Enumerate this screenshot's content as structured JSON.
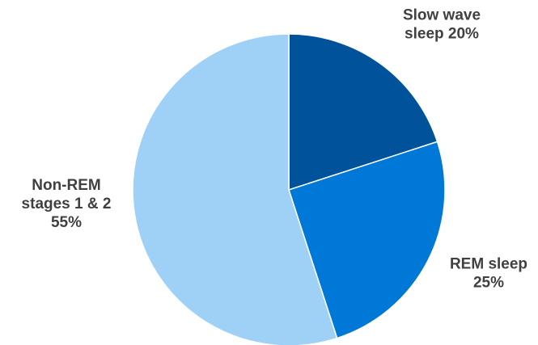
{
  "chart_data": {
    "type": "pie",
    "title": "",
    "slices": [
      {
        "category": "Slow wave sleep",
        "value": 20,
        "label_lines": [
          "Slow wave",
          "sleep 20%"
        ],
        "color": "#00539b"
      },
      {
        "category": "REM sleep",
        "value": 25,
        "label_lines": [
          "REM sleep",
          "25%"
        ],
        "color": "#0078d7"
      },
      {
        "category": "Non-REM stages 1 & 2",
        "value": 55,
        "label_lines": [
          "Non-REM",
          "stages 1 & 2",
          "55%"
        ],
        "color": "#9fd1f7"
      }
    ],
    "start_angle_deg": 0,
    "direction": "clockwise",
    "legend": "none",
    "labels": "outside"
  }
}
